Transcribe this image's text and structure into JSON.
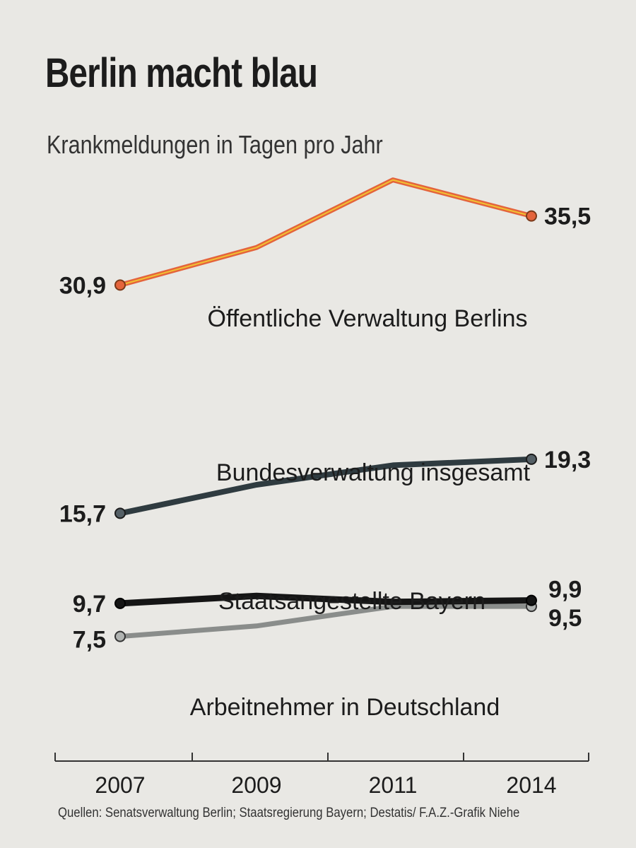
{
  "title": "Berlin macht blau",
  "subtitle": "Krankmeldungen in Tagen pro Jahr",
  "source": "Quellen: Senatsverwaltung Berlin; Staatsregierung Bayern; Destatis/ F.A.Z.-Grafik Niehe",
  "colors": {
    "accent_orange": "#e4643c",
    "accent_yellow": "#f1c232",
    "bund_dark": "#2f3b40",
    "bayern_black": "#151515",
    "de_gray": "#8a8d8b"
  },
  "chart_data": {
    "type": "line",
    "title": "Berlin macht blau",
    "subtitle": "Krankmeldungen in Tagen pro Jahr",
    "xlabel": "",
    "ylabel": "",
    "ylim": [
      0,
      40
    ],
    "grid": false,
    "categories": [
      "2007",
      "2009",
      "2011",
      "2014"
    ],
    "series": [
      {
        "name": "Öffentliche Verwaltung Berlins",
        "values": [
          30.9,
          33.4,
          37.9,
          35.5
        ],
        "start_label": "30,9",
        "end_label": "35,5"
      },
      {
        "name": "Bundesverwaltung insgesamt",
        "values": [
          15.7,
          17.6,
          18.9,
          19.3
        ],
        "start_label": "15,7",
        "end_label": "19,3"
      },
      {
        "name": "Staatsangestellte Bayern",
        "values": [
          9.7,
          10.2,
          9.8,
          9.9
        ],
        "start_label": "9,7",
        "end_label": "9,9"
      },
      {
        "name": "Arbeitnehmer in Deutschland",
        "values": [
          7.5,
          8.2,
          9.5,
          9.5
        ],
        "start_label": "7,5",
        "end_label": "9,5"
      }
    ]
  }
}
